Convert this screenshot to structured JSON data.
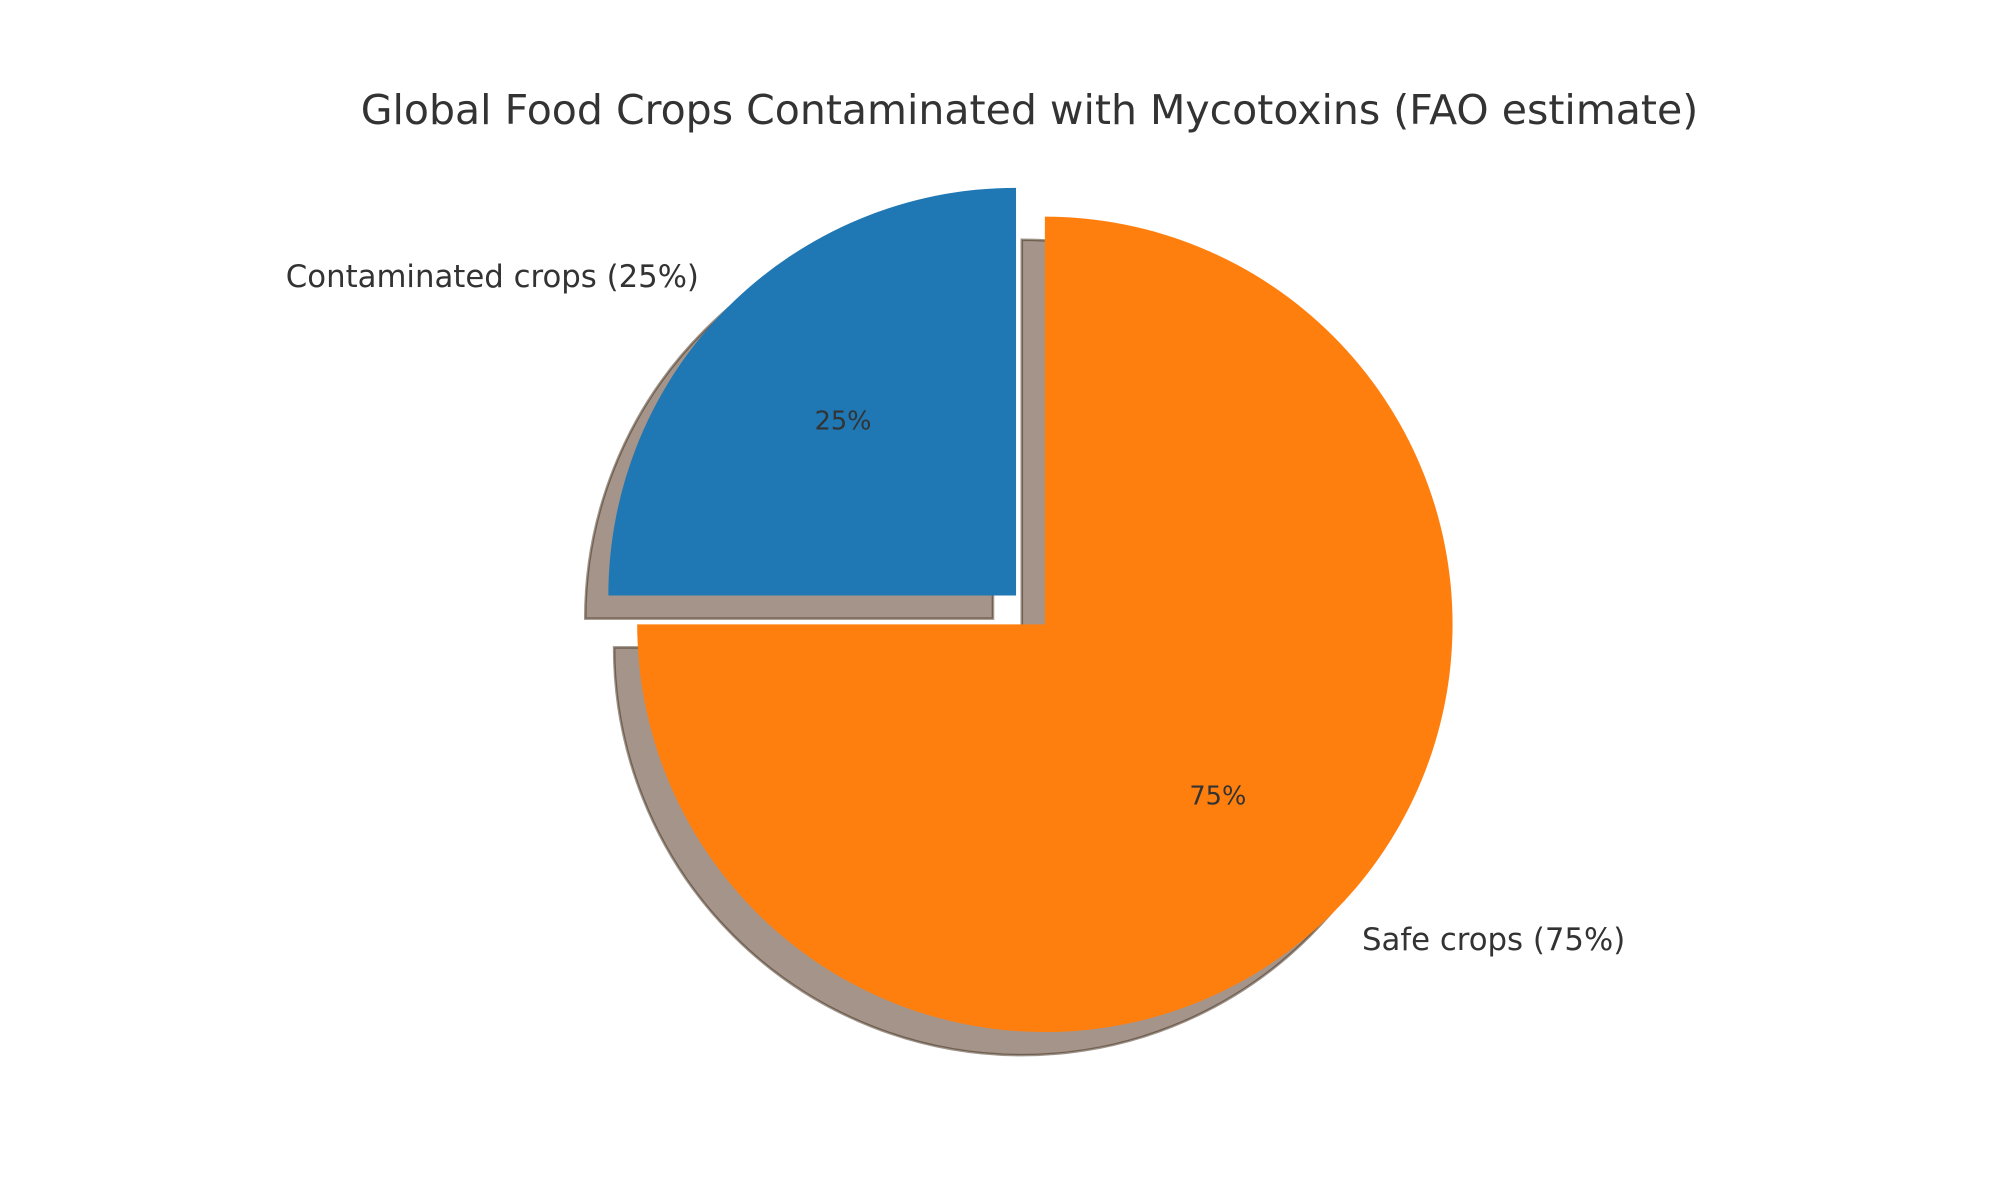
{
  "chart_data": {
    "type": "pie",
    "title": "Global Food Crops Contaminated with Mycotoxins (FAO estimate)",
    "categories": [
      "Contaminated crops (25%)",
      "Safe crops (75%)"
    ],
    "values": [
      25,
      75
    ],
    "value_labels": [
      "25%",
      "75%"
    ],
    "colors": [
      "#1f77b4",
      "#ff7f0e"
    ],
    "explode": [
      0.1,
      0
    ],
    "start_angle": 90,
    "shadow": true
  }
}
